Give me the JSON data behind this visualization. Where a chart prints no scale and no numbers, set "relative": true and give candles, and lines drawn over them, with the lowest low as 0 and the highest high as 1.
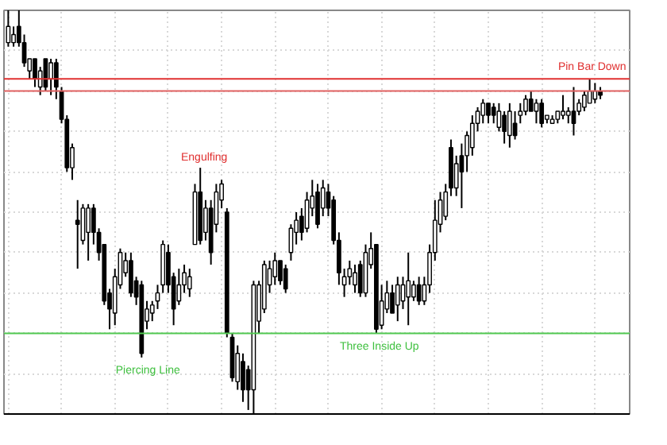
{
  "chart_data": {
    "type": "candlestick",
    "relative": true,
    "grid": true,
    "categories": [
      null,
      null,
      null,
      null,
      null,
      null,
      null,
      null,
      null,
      null,
      null,
      null,
      null,
      null,
      null,
      null,
      null,
      null,
      null,
      null,
      null,
      null,
      null,
      null,
      null,
      null,
      null,
      null,
      null,
      null,
      null,
      null,
      null,
      null,
      null,
      null,
      null,
      null,
      null,
      null,
      null,
      null,
      null,
      null,
      null,
      null,
      null,
      null,
      null,
      null,
      null,
      null,
      null,
      null,
      null,
      null,
      null,
      null,
      null,
      null,
      null,
      null,
      null,
      null,
      null,
      null,
      null,
      null,
      null,
      null,
      null,
      null,
      null,
      null,
      null,
      null,
      null,
      null,
      null,
      null,
      null,
      null,
      null,
      null,
      null,
      null,
      null,
      null,
      null,
      null,
      null,
      null,
      null,
      null,
      null,
      null,
      null,
      null,
      null,
      null,
      null,
      null,
      null,
      null,
      null,
      null,
      null,
      null,
      null,
      null,
      null,
      null
    ],
    "ohlc": [
      [
        0.92,
        1.0,
        0.91,
        0.96
      ],
      [
        0.92,
        0.96,
        0.91,
        0.94
      ],
      [
        0.96,
        1.0,
        0.91,
        0.92
      ],
      [
        0.92,
        0.94,
        0.86,
        0.87
      ],
      [
        0.85,
        0.88,
        0.83,
        0.88
      ],
      [
        0.88,
        0.88,
        0.81,
        0.83
      ],
      [
        0.81,
        0.86,
        0.79,
        0.85
      ],
      [
        0.88,
        0.88,
        0.8,
        0.81
      ],
      [
        0.83,
        0.88,
        0.79,
        0.87
      ],
      [
        0.87,
        0.88,
        0.78,
        0.81
      ],
      [
        0.8,
        0.81,
        0.72,
        0.73
      ],
      [
        0.73,
        0.74,
        0.6,
        0.61
      ],
      [
        0.61,
        0.67,
        0.58,
        0.66
      ],
      [
        0.48,
        0.53,
        0.36,
        0.47
      ],
      [
        0.43,
        0.52,
        0.42,
        0.51
      ],
      [
        0.45,
        0.52,
        0.38,
        0.51
      ],
      [
        0.51,
        0.52,
        0.42,
        0.45
      ],
      [
        0.45,
        0.46,
        0.38,
        0.4
      ],
      [
        0.42,
        0.42,
        0.27,
        0.28
      ],
      [
        0.3,
        0.31,
        0.21,
        0.26
      ],
      [
        0.25,
        0.36,
        0.22,
        0.34
      ],
      [
        0.32,
        0.41,
        0.31,
        0.4
      ],
      [
        0.35,
        0.4,
        0.34,
        0.38
      ],
      [
        0.38,
        0.4,
        0.29,
        0.3
      ],
      [
        0.33,
        0.34,
        0.27,
        0.29
      ],
      [
        0.32,
        0.33,
        0.14,
        0.15
      ],
      [
        0.23,
        0.28,
        0.21,
        0.26
      ],
      [
        0.25,
        0.28,
        0.23,
        0.27
      ],
      [
        0.28,
        0.32,
        0.26,
        0.3
      ],
      [
        0.32,
        0.43,
        0.3,
        0.42
      ],
      [
        0.4,
        0.42,
        0.3,
        0.32
      ],
      [
        0.34,
        0.35,
        0.22,
        0.26
      ],
      [
        0.28,
        0.36,
        0.27,
        0.32
      ],
      [
        0.32,
        0.37,
        0.3,
        0.35
      ],
      [
        0.31,
        0.36,
        0.29,
        0.34
      ],
      [
        0.42,
        0.57,
        0.42,
        0.55
      ],
      [
        0.55,
        0.61,
        0.42,
        0.43
      ],
      [
        0.45,
        0.53,
        0.43,
        0.51
      ],
      [
        0.51,
        0.53,
        0.37,
        0.4
      ],
      [
        0.47,
        0.57,
        0.45,
        0.55
      ],
      [
        0.53,
        0.58,
        0.51,
        0.57
      ],
      [
        0.5,
        0.51,
        0.19,
        0.2
      ],
      [
        0.19,
        0.2,
        0.08,
        0.09
      ],
      [
        0.08,
        0.17,
        0.06,
        0.15
      ],
      [
        0.13,
        0.15,
        0.03,
        0.06
      ],
      [
        0.11,
        0.12,
        0.01,
        0.06
      ],
      [
        0.06,
        0.33,
        0.0,
        0.32
      ],
      [
        0.23,
        0.33,
        0.2,
        0.32
      ],
      [
        0.26,
        0.38,
        0.25,
        0.37
      ],
      [
        0.32,
        0.38,
        0.3,
        0.36
      ],
      [
        0.34,
        0.4,
        0.32,
        0.38
      ],
      [
        0.38,
        0.38,
        0.32,
        0.33
      ],
      [
        0.36,
        0.37,
        0.3,
        0.31
      ],
      [
        0.4,
        0.47,
        0.38,
        0.46
      ],
      [
        0.45,
        0.5,
        0.42,
        0.48
      ],
      [
        0.49,
        0.51,
        0.43,
        0.45
      ],
      [
        0.46,
        0.55,
        0.45,
        0.53
      ],
      [
        0.51,
        0.58,
        0.49,
        0.54
      ],
      [
        0.55,
        0.57,
        0.46,
        0.47
      ],
      [
        0.51,
        0.58,
        0.49,
        0.56
      ],
      [
        0.55,
        0.57,
        0.49,
        0.51
      ],
      [
        0.53,
        0.54,
        0.42,
        0.43
      ],
      [
        0.43,
        0.45,
        0.32,
        0.35
      ],
      [
        0.32,
        0.36,
        0.29,
        0.34
      ],
      [
        0.34,
        0.38,
        0.32,
        0.36
      ],
      [
        0.32,
        0.37,
        0.3,
        0.35
      ],
      [
        0.37,
        0.38,
        0.29,
        0.3
      ],
      [
        0.3,
        0.42,
        0.29,
        0.4
      ],
      [
        0.37,
        0.45,
        0.36,
        0.41
      ],
      [
        0.42,
        0.42,
        0.2,
        0.21
      ],
      [
        0.22,
        0.32,
        0.21,
        0.28
      ],
      [
        0.26,
        0.33,
        0.25,
        0.3
      ],
      [
        0.3,
        0.32,
        0.25,
        0.25
      ],
      [
        0.27,
        0.34,
        0.23,
        0.32
      ],
      [
        0.28,
        0.34,
        0.26,
        0.32
      ],
      [
        0.29,
        0.4,
        0.22,
        0.33
      ],
      [
        0.29,
        0.33,
        0.28,
        0.32
      ],
      [
        0.32,
        0.34,
        0.27,
        0.28
      ],
      [
        0.28,
        0.34,
        0.27,
        0.32
      ],
      [
        0.32,
        0.42,
        0.3,
        0.4
      ],
      [
        0.4,
        0.53,
        0.38,
        0.48
      ],
      [
        0.47,
        0.55,
        0.45,
        0.53
      ],
      [
        0.49,
        0.57,
        0.48,
        0.55
      ],
      [
        0.66,
        0.68,
        0.54,
        0.56
      ],
      [
        0.56,
        0.64,
        0.54,
        0.62
      ],
      [
        0.64,
        0.67,
        0.51,
        0.6
      ],
      [
        0.64,
        0.7,
        0.6,
        0.69
      ],
      [
        0.66,
        0.74,
        0.64,
        0.72
      ],
      [
        0.72,
        0.76,
        0.7,
        0.75
      ],
      [
        0.74,
        0.78,
        0.72,
        0.77
      ],
      [
        0.77,
        0.77,
        0.72,
        0.74
      ],
      [
        0.76,
        0.77,
        0.72,
        0.74
      ],
      [
        0.71,
        0.77,
        0.7,
        0.75
      ],
      [
        0.74,
        0.75,
        0.67,
        0.7
      ],
      [
        0.69,
        0.77,
        0.66,
        0.75
      ],
      [
        0.72,
        0.75,
        0.68,
        0.69
      ],
      [
        0.74,
        0.77,
        0.72,
        0.75
      ],
      [
        0.75,
        0.79,
        0.74,
        0.78
      ],
      [
        0.78,
        0.8,
        0.75,
        0.75
      ],
      [
        0.75,
        0.78,
        0.72,
        0.77
      ],
      [
        0.77,
        0.78,
        0.71,
        0.72
      ],
      [
        0.73,
        0.74,
        0.72,
        0.74
      ],
      [
        0.72,
        0.74,
        0.72,
        0.73
      ],
      [
        0.73,
        0.75,
        0.72,
        0.75
      ],
      [
        0.74,
        0.79,
        0.73,
        0.75
      ],
      [
        0.74,
        0.76,
        0.72,
        0.75
      ],
      [
        0.75,
        0.81,
        0.69,
        0.72
      ],
      [
        0.75,
        0.78,
        0.74,
        0.77
      ],
      [
        0.76,
        0.8,
        0.75,
        0.79
      ],
      [
        0.77,
        0.83,
        0.77,
        0.8
      ],
      [
        0.78,
        0.82,
        0.77,
        0.8
      ],
      [
        0.8,
        0.81,
        0.78,
        0.79
      ]
    ],
    "ref_lines": [
      {
        "axis": "y",
        "value": 0.8,
        "color": "#e06060"
      },
      {
        "axis": "y",
        "value": 0.83,
        "color": "#e03030"
      },
      {
        "axis": "y",
        "value": 0.2,
        "color": "#50c850"
      }
    ],
    "annotations": [
      "Engulfing",
      "Piercing Line",
      "Three Inside Up",
      "Pin Bar Down"
    ]
  }
}
